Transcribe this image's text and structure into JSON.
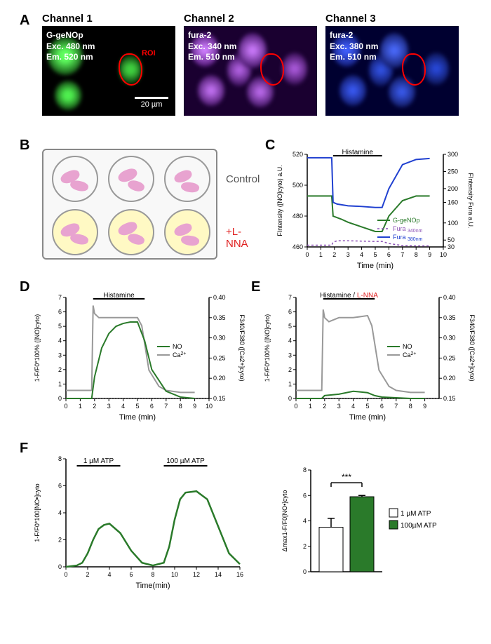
{
  "labels": {
    "A": "A",
    "B": "B",
    "C": "C",
    "D": "D",
    "E": "E",
    "F": "F"
  },
  "panelA": {
    "channels": [
      {
        "title": "Channel 1",
        "lines": [
          "G-geNOp",
          "Exc. 480 nm",
          "Em.  520 nm"
        ],
        "roi_label": "ROI",
        "scalebar": "20 µm"
      },
      {
        "title": "Channel 2",
        "lines": [
          "fura-2",
          "Exc. 340 nm",
          "Em.  510 nm"
        ]
      },
      {
        "title": "Channel 3",
        "lines": [
          "fura-2",
          "Exc. 380 nm",
          "Em.  510 nm"
        ]
      }
    ]
  },
  "panelB": {
    "control_label": "Control",
    "lnna_label": "+L-NNA"
  },
  "panelC": {
    "treatment": "Histamine",
    "xlabel": "Time (min)",
    "ylabel_left": "F",
    "ylabel_left_sub": "Intensity",
    "ylabel_left_rest": " ([NO]",
    "ylabel_left_sub2": "cyto",
    "ylabel_left_end": ") a.U.",
    "ylabel_right": "F",
    "ylabel_right_sub": "Intensity",
    "ylabel_right_rest": " Fura a.U.",
    "legend": [
      "G-geNOp",
      "Fura ",
      "Fura "
    ],
    "legend_sub": [
      "",
      "340nm",
      "380nm"
    ],
    "xlim": [
      0,
      10
    ],
    "xticks": [
      0,
      1,
      2,
      3,
      4,
      5,
      6,
      7,
      8,
      9,
      10
    ],
    "yleft_ticks": [
      460,
      480,
      500,
      520
    ],
    "yright_ticks": [
      30,
      50,
      100,
      160,
      200,
      250,
      300
    ],
    "colors": {
      "green": "#2a7a2a",
      "purple": "#8a4fb5",
      "blue": "#2040d0"
    },
    "series": {
      "green_x": [
        0,
        1.8,
        1.9,
        2.5,
        3,
        4,
        5,
        5.5,
        6,
        7,
        8,
        9
      ],
      "green_y": [
        493,
        493,
        480,
        478,
        476,
        473,
        470,
        470,
        480,
        490,
        493,
        493
      ],
      "purple_x": [
        0,
        1.8,
        1.9,
        2.2,
        3,
        4,
        5,
        5.5,
        6,
        7,
        8,
        9
      ],
      "purple_y": [
        35,
        35,
        44,
        48,
        48,
        47,
        46,
        46,
        40,
        34,
        33,
        33
      ],
      "blue_x": [
        0,
        1.8,
        1.9,
        2.2,
        3,
        4,
        5,
        5.5,
        6,
        7,
        8,
        9
      ],
      "blue_y": [
        290,
        290,
        160,
        155,
        150,
        148,
        145,
        145,
        200,
        270,
        285,
        288
      ]
    }
  },
  "panelD": {
    "treatment": "Histamine",
    "xlabel": "Time (min)",
    "ylabel_left": "1-F/F",
    "ylabel_left_sub": "0",
    "ylabel_left_rest": "*100% ([NO]",
    "ylabel_left_sub2": "cyto",
    "ylabel_left_end": ")",
    "ylabel_right": "F",
    "ylabel_right_sub": "340",
    "ylabel_right_mid": "/F",
    "ylabel_right_sub2": "380",
    "ylabel_right_rest": " ([Ca",
    "ylabel_right_sup": "2+",
    "ylabel_right_end": "]",
    "ylabel_right_sub3": "cyto",
    "ylabel_right_end2": ")",
    "legend": [
      "NO",
      "Ca"
    ],
    "legend_sup": [
      "",
      "2+"
    ],
    "xlim": [
      0,
      10
    ],
    "xticks": [
      0,
      1,
      2,
      3,
      4,
      5,
      6,
      7,
      8,
      9,
      10
    ],
    "yleft_ticks": [
      0,
      1,
      2,
      3,
      4,
      5,
      6,
      7
    ],
    "yright_ticks": [
      0.15,
      0.2,
      0.25,
      0.3,
      0.35,
      0.4
    ],
    "colors": {
      "green": "#2a7a2a",
      "grey": "#999999"
    },
    "series": {
      "green_x": [
        0,
        1.8,
        2,
        2.5,
        3,
        3.5,
        4,
        4.5,
        5,
        5.5,
        6,
        7,
        8,
        9
      ],
      "green_y": [
        0,
        0,
        1.5,
        3.5,
        4.5,
        5,
        5.2,
        5.3,
        5.3,
        4,
        2,
        0.5,
        0.1,
        0
      ],
      "grey_x": [
        0,
        1.8,
        1.9,
        2,
        2.3,
        3,
        4,
        5,
        5.3,
        5.8,
        6.5,
        7,
        8,
        9
      ],
      "grey_y": [
        0.17,
        0.17,
        0.38,
        0.36,
        0.35,
        0.35,
        0.35,
        0.35,
        0.33,
        0.22,
        0.18,
        0.17,
        0.165,
        0.165
      ]
    }
  },
  "panelE": {
    "treatment1": "Histamine /",
    "treatment2": " L-NNA",
    "xlabel": "Time (min)",
    "ylabel_left": "1-F/F",
    "ylabel_left_sub": "0",
    "ylabel_left_rest": "*100% ([NO]",
    "ylabel_left_sub2": "cyto",
    "ylabel_left_end": ")",
    "xlim": [
      0,
      10
    ],
    "xticks": [
      0,
      1,
      2,
      3,
      4,
      5,
      6,
      7,
      8,
      9
    ],
    "yleft_ticks": [
      0,
      1,
      2,
      3,
      4,
      5,
      6,
      7
    ],
    "yright_ticks": [
      0.15,
      0.2,
      0.25,
      0.3,
      0.35,
      0.4
    ],
    "colors": {
      "green": "#2a7a2a",
      "grey": "#999999",
      "red": "#e02020"
    },
    "legend": [
      "NO",
      "Ca"
    ],
    "legend_sup": [
      "",
      "2+"
    ],
    "series": {
      "green_x": [
        0,
        1.8,
        2,
        3,
        4,
        5,
        5.5,
        6,
        7,
        8,
        9
      ],
      "green_y": [
        0,
        0,
        0.2,
        0.3,
        0.5,
        0.4,
        0.2,
        0.1,
        0.05,
        0,
        0
      ],
      "grey_x": [
        0,
        1.8,
        1.9,
        2,
        2.3,
        3,
        4,
        5,
        5.3,
        5.8,
        6.5,
        7,
        8,
        9
      ],
      "grey_y": [
        0.17,
        0.17,
        0.37,
        0.35,
        0.34,
        0.35,
        0.35,
        0.355,
        0.33,
        0.22,
        0.18,
        0.17,
        0.165,
        0.165
      ]
    }
  },
  "panelF": {
    "treatment1": "1 µM ATP",
    "treatment2": "100 µM ATP",
    "xlabel": "Time(min)",
    "ylabel": "1-F/F",
    "ylabel_sub": "0",
    "ylabel_rest": "*100[NO",
    "ylabel_sup": "•",
    "ylabel_end": "]",
    "ylabel_sub2": "cyto",
    "xlim": [
      0,
      16
    ],
    "xticks": [
      0,
      2,
      4,
      6,
      8,
      10,
      12,
      14,
      16
    ],
    "yticks": [
      0,
      2,
      4,
      6,
      8
    ],
    "color": "#2a7a2a",
    "series": {
      "x": [
        0,
        1,
        1.5,
        2,
        2.5,
        3,
        3.5,
        4,
        5,
        6,
        7,
        8,
        9,
        9.5,
        10,
        10.5,
        11,
        12,
        13,
        14,
        15,
        16
      ],
      "y": [
        0,
        0.1,
        0.3,
        1,
        2,
        2.8,
        3.1,
        3.2,
        2.5,
        1.2,
        0.3,
        0.1,
        0.3,
        1.5,
        3.5,
        5,
        5.5,
        5.6,
        5,
        3,
        1,
        0.2
      ]
    },
    "bar": {
      "ylabel": "Δ",
      "ylabel_sub": "max",
      "ylabel_rest": "1-F/F",
      "ylabel_sub2": "0",
      "ylabel_rest2": "[NO",
      "ylabel_sup": "•",
      "ylabel_end": "]",
      "ylabel_sub3": "cyto",
      "yticks": [
        0,
        2,
        4,
        6,
        8
      ],
      "sig": "***",
      "legend": [
        "1 µM ATP",
        "100µM ATP"
      ],
      "values": [
        3.5,
        5.9
      ],
      "errors": [
        0.7,
        0.1
      ],
      "colors": [
        "#ffffff",
        "#2a7a2a"
      ]
    }
  }
}
